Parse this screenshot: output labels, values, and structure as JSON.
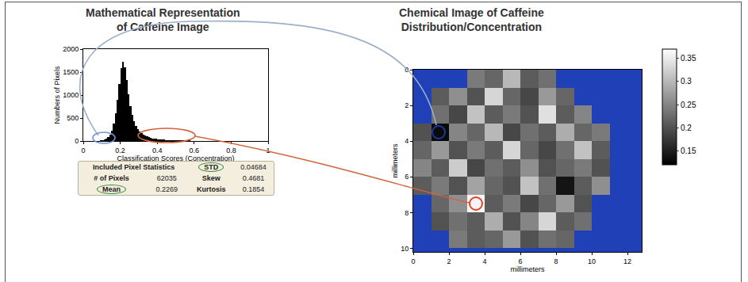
{
  "chart_data": [
    {
      "type": "histogram",
      "title": "Mathematical Representation\nof Caffeine Image",
      "x_label": "Classification Scores (Concentration)",
      "y_label": "Numbers of Pixels",
      "bins": [
        0.08,
        0.09,
        0.1,
        0.11,
        0.12,
        0.13,
        0.14,
        0.15,
        0.16,
        0.17,
        0.18,
        0.19,
        0.2,
        0.21,
        0.22,
        0.23,
        0.24,
        0.25,
        0.26,
        0.27,
        0.28,
        0.29,
        0.3,
        0.31,
        0.32,
        0.33,
        0.34,
        0.35,
        0.36,
        0.37,
        0.38,
        0.39,
        0.4,
        0.41,
        0.42,
        0.43,
        0.44,
        0.45,
        0.46,
        0.47,
        0.48,
        0.49,
        0.5,
        0.51,
        0.52,
        0.53,
        0.54,
        0.55,
        0.56,
        0.57,
        0.58,
        0.59,
        0.6,
        0.61,
        0.62,
        0.63,
        0.64,
        0.65,
        0.66,
        0.67,
        0.68,
        0.69,
        0.7
      ],
      "values": [
        5,
        10,
        18,
        30,
        50,
        85,
        140,
        230,
        380,
        600,
        900,
        1250,
        1580,
        1720,
        1600,
        1320,
        1020,
        760,
        570,
        430,
        330,
        260,
        210,
        170,
        140,
        115,
        95,
        80,
        68,
        58,
        50,
        44,
        39,
        35,
        31,
        28,
        25,
        23,
        21,
        19,
        17,
        16,
        15,
        14,
        13,
        12,
        11,
        10,
        9,
        9,
        8,
        7,
        7,
        6,
        5,
        5,
        4,
        4,
        3,
        3,
        2,
        2
      ],
      "color": "#000000",
      "xlim": [
        0,
        1
      ],
      "xticks": [
        0,
        0.2,
        0.4,
        0.6,
        0.8,
        1
      ],
      "ylim": [
        0,
        2000
      ],
      "yticks": [
        0,
        500,
        1000,
        1500,
        2000
      ]
    },
    {
      "type": "heatmap",
      "title": "Chemical Image of Caffeine\nDistribution/Concentration",
      "x_label": "millimeters",
      "y_label": "millimeters",
      "x": [
        0.5,
        1.5,
        2.5,
        3.5,
        4.5,
        5.5,
        6.5,
        7.5,
        8.5,
        9.5,
        10.5,
        11.5,
        12.5
      ],
      "y": [
        0.5,
        1.5,
        2.5,
        3.5,
        4.5,
        5.5,
        6.5,
        7.5,
        8.5,
        9.5
      ],
      "z": [
        [
          null,
          null,
          null,
          0.24,
          0.22,
          0.3,
          0.21,
          0.23,
          null,
          null,
          null,
          null,
          null
        ],
        [
          null,
          0.21,
          0.26,
          0.2,
          0.33,
          0.22,
          0.19,
          0.27,
          0.22,
          null,
          null,
          null,
          null
        ],
        [
          null,
          0.23,
          0.19,
          0.31,
          0.21,
          0.24,
          0.2,
          0.34,
          0.21,
          0.25,
          null,
          null,
          null
        ],
        [
          0.2,
          0.13,
          0.25,
          0.22,
          0.3,
          0.19,
          0.23,
          0.21,
          0.29,
          0.22,
          0.24,
          null,
          null
        ],
        [
          0.22,
          0.27,
          0.2,
          0.24,
          0.21,
          0.33,
          0.22,
          0.19,
          0.23,
          0.31,
          0.21,
          null,
          null
        ],
        [
          0.25,
          0.21,
          0.32,
          0.19,
          0.23,
          0.21,
          0.26,
          0.2,
          0.22,
          0.24,
          0.2,
          null,
          null
        ],
        [
          0.21,
          0.24,
          0.2,
          0.28,
          0.22,
          0.2,
          0.31,
          0.23,
          0.14,
          0.21,
          0.26,
          null,
          null
        ],
        [
          null,
          0.22,
          0.26,
          0.36,
          0.21,
          0.24,
          0.19,
          0.22,
          0.27,
          0.2,
          null,
          null,
          null
        ],
        [
          null,
          0.2,
          0.23,
          0.21,
          0.29,
          0.2,
          0.25,
          0.33,
          0.21,
          0.23,
          null,
          null,
          null
        ],
        [
          null,
          null,
          0.24,
          0.21,
          0.22,
          0.27,
          0.2,
          0.23,
          0.22,
          null,
          null,
          null,
          null
        ]
      ],
      "xlim": [
        0,
        12.8
      ],
      "xticks": [
        0,
        2,
        4,
        6,
        8,
        10,
        12
      ],
      "ylim": [
        10.2,
        0
      ],
      "yticks": [
        0,
        2,
        4,
        6,
        8,
        10
      ],
      "zlim": [
        0.12,
        0.37
      ],
      "zticks": [
        0.15,
        0.2,
        0.25,
        0.3,
        0.35
      ]
    }
  ],
  "stats_table": {
    "title": "Included Pixel Statistics",
    "left": [
      {
        "label": "# of Pixels",
        "value": 62035
      },
      {
        "label": "Mean",
        "value": 0.2269,
        "circled": true
      }
    ],
    "right": [
      {
        "label": "STD",
        "value": 0.04684,
        "circled": true
      },
      {
        "label": "Skew",
        "value": 0.4681
      },
      {
        "label": "Kurtosis",
        "value": 0.1854
      }
    ]
  }
}
